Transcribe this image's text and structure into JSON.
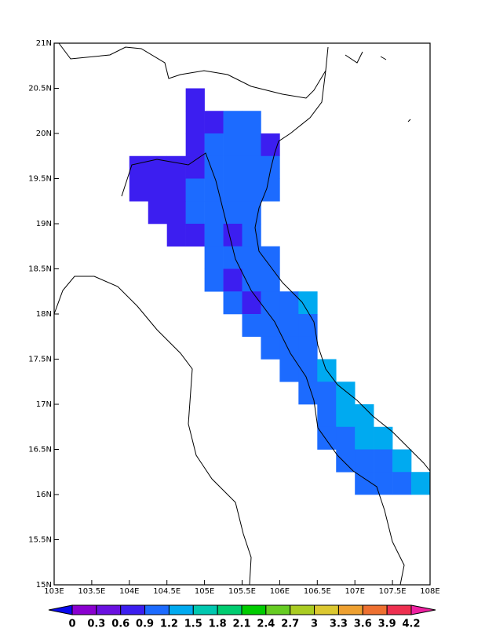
{
  "chart_data": {
    "type": "grid-map",
    "xlim": [
      103,
      108
    ],
    "ylim": [
      15,
      21
    ],
    "xticks": [
      {
        "value": 103,
        "label": "103E"
      },
      {
        "value": 103.5,
        "label": "103.5E"
      },
      {
        "value": 104,
        "label": "104E"
      },
      {
        "value": 104.5,
        "label": "104.5E"
      },
      {
        "value": 105,
        "label": "105E"
      },
      {
        "value": 105.5,
        "label": "105.5E"
      },
      {
        "value": 106,
        "label": "106E"
      },
      {
        "value": 106.5,
        "label": "106.5E"
      },
      {
        "value": 107,
        "label": "107E"
      },
      {
        "value": 107.5,
        "label": "107.5E"
      },
      {
        "value": 108,
        "label": "108E"
      }
    ],
    "yticks": [
      {
        "value": 15,
        "label": "15N"
      },
      {
        "value": 15.5,
        "label": "15.5N"
      },
      {
        "value": 16,
        "label": "16N"
      },
      {
        "value": 16.5,
        "label": "16.5N"
      },
      {
        "value": 17,
        "label": "17N"
      },
      {
        "value": 17.5,
        "label": "17.5N"
      },
      {
        "value": 18,
        "label": "18N"
      },
      {
        "value": 18.5,
        "label": "18.5N"
      },
      {
        "value": 19,
        "label": "19N"
      },
      {
        "value": 19.5,
        "label": "19.5N"
      },
      {
        "value": 20,
        "label": "20N"
      },
      {
        "value": 20.5,
        "label": "20.5N"
      },
      {
        "value": 21,
        "label": "21N"
      }
    ],
    "levels": [
      0,
      0.3,
      0.6,
      0.9,
      1.2,
      1.5,
      1.8,
      2.1,
      2.4,
      2.7,
      3,
      3.3,
      3.6,
      3.9,
      4.2
    ],
    "colors": [
      "#0a0aee",
      "#8a00d0",
      "#6a10e0",
      "#3c1ef0",
      "#1c6bff",
      "#00aaf0",
      "#00c8b0",
      "#00cc70",
      "#00cc00",
      "#66cc22",
      "#aacc22",
      "#dcc830",
      "#eea030",
      "#ee7030",
      "#ee3050",
      "#ee20a0"
    ],
    "cells": [
      {
        "lon": 104.75,
        "lat": 20.25,
        "value": 0.75
      },
      {
        "lon": 104.75,
        "lat": 20,
        "value": 0.75
      },
      {
        "lon": 105,
        "lat": 20,
        "value": 0.75
      },
      {
        "lon": 105.25,
        "lat": 20,
        "value": 1.05
      },
      {
        "lon": 105.5,
        "lat": 20,
        "value": 1.05
      },
      {
        "lon": 104.75,
        "lat": 19.75,
        "value": 0.75
      },
      {
        "lon": 105,
        "lat": 19.75,
        "value": 1.05
      },
      {
        "lon": 105.25,
        "lat": 19.75,
        "value": 1.05
      },
      {
        "lon": 105.5,
        "lat": 19.75,
        "value": 1.05
      },
      {
        "lon": 105.75,
        "lat": 19.75,
        "value": 0.75
      },
      {
        "lon": 104,
        "lat": 19.5,
        "value": 0.75
      },
      {
        "lon": 104.25,
        "lat": 19.5,
        "value": 0.75
      },
      {
        "lon": 104.5,
        "lat": 19.5,
        "value": 0.75
      },
      {
        "lon": 104.75,
        "lat": 19.5,
        "value": 0.75
      },
      {
        "lon": 105,
        "lat": 19.5,
        "value": 1.05
      },
      {
        "lon": 105.25,
        "lat": 19.5,
        "value": 1.05
      },
      {
        "lon": 105.5,
        "lat": 19.5,
        "value": 1.05
      },
      {
        "lon": 105.75,
        "lat": 19.5,
        "value": 1.05
      },
      {
        "lon": 104,
        "lat": 19.25,
        "value": 0.75
      },
      {
        "lon": 104.25,
        "lat": 19.25,
        "value": 0.75
      },
      {
        "lon": 104.5,
        "lat": 19.25,
        "value": 0.75
      },
      {
        "lon": 104.75,
        "lat": 19.25,
        "value": 1.05
      },
      {
        "lon": 105,
        "lat": 19.25,
        "value": 1.05
      },
      {
        "lon": 105.25,
        "lat": 19.25,
        "value": 1.05
      },
      {
        "lon": 105.5,
        "lat": 19.25,
        "value": 1.05
      },
      {
        "lon": 105.75,
        "lat": 19.25,
        "value": 1.05
      },
      {
        "lon": 104.25,
        "lat": 19,
        "value": 0.75
      },
      {
        "lon": 104.5,
        "lat": 19,
        "value": 0.75
      },
      {
        "lon": 104.75,
        "lat": 19,
        "value": 1.05
      },
      {
        "lon": 105,
        "lat": 19,
        "value": 1.05
      },
      {
        "lon": 105.25,
        "lat": 19,
        "value": 1.05
      },
      {
        "lon": 105.5,
        "lat": 19,
        "value": 1.05
      },
      {
        "lon": 104.5,
        "lat": 18.75,
        "value": 0.75
      },
      {
        "lon": 104.75,
        "lat": 18.75,
        "value": 0.75
      },
      {
        "lon": 105,
        "lat": 18.75,
        "value": 1.05
      },
      {
        "lon": 105.25,
        "lat": 18.75,
        "value": 0.75
      },
      {
        "lon": 105.5,
        "lat": 18.75,
        "value": 1.05
      },
      {
        "lon": 105,
        "lat": 18.5,
        "value": 1.05
      },
      {
        "lon": 105.25,
        "lat": 18.5,
        "value": 1.05
      },
      {
        "lon": 105.5,
        "lat": 18.5,
        "value": 1.05
      },
      {
        "lon": 105.75,
        "lat": 18.5,
        "value": 1.05
      },
      {
        "lon": 105,
        "lat": 18.25,
        "value": 1.05
      },
      {
        "lon": 105.25,
        "lat": 18.25,
        "value": 0.75
      },
      {
        "lon": 105.5,
        "lat": 18.25,
        "value": 1.05
      },
      {
        "lon": 105.75,
        "lat": 18.25,
        "value": 1.05
      },
      {
        "lon": 105.25,
        "lat": 18,
        "value": 1.05
      },
      {
        "lon": 105.5,
        "lat": 18,
        "value": 0.75
      },
      {
        "lon": 105.75,
        "lat": 18,
        "value": 1.05
      },
      {
        "lon": 106,
        "lat": 18,
        "value": 1.05
      },
      {
        "lon": 106.25,
        "lat": 18,
        "value": 1.35
      },
      {
        "lon": 105.5,
        "lat": 17.75,
        "value": 1.05
      },
      {
        "lon": 105.75,
        "lat": 17.75,
        "value": 1.05
      },
      {
        "lon": 106,
        "lat": 17.75,
        "value": 1.05
      },
      {
        "lon": 106.25,
        "lat": 17.75,
        "value": 1.05
      },
      {
        "lon": 105.75,
        "lat": 17.5,
        "value": 1.05
      },
      {
        "lon": 106,
        "lat": 17.5,
        "value": 1.05
      },
      {
        "lon": 106.25,
        "lat": 17.5,
        "value": 1.05
      },
      {
        "lon": 106,
        "lat": 17.25,
        "value": 1.05
      },
      {
        "lon": 106.25,
        "lat": 17.25,
        "value": 1.05
      },
      {
        "lon": 106.5,
        "lat": 17.25,
        "value": 1.35
      },
      {
        "lon": 106.25,
        "lat": 17,
        "value": 1.05
      },
      {
        "lon": 106.5,
        "lat": 17,
        "value": 1.05
      },
      {
        "lon": 106.75,
        "lat": 17,
        "value": 1.35
      },
      {
        "lon": 106.5,
        "lat": 16.75,
        "value": 1.05
      },
      {
        "lon": 106.75,
        "lat": 16.75,
        "value": 1.35
      },
      {
        "lon": 107,
        "lat": 16.75,
        "value": 1.35
      },
      {
        "lon": 106.5,
        "lat": 16.5,
        "value": 1.05
      },
      {
        "lon": 106.75,
        "lat": 16.5,
        "value": 1.05
      },
      {
        "lon": 107,
        "lat": 16.5,
        "value": 1.35
      },
      {
        "lon": 107.25,
        "lat": 16.5,
        "value": 1.35
      },
      {
        "lon": 106.75,
        "lat": 16.25,
        "value": 1.05
      },
      {
        "lon": 107,
        "lat": 16.25,
        "value": 1.05
      },
      {
        "lon": 107.25,
        "lat": 16.25,
        "value": 1.05
      },
      {
        "lon": 107.5,
        "lat": 16.25,
        "value": 1.35
      },
      {
        "lon": 107,
        "lat": 16,
        "value": 1.05
      },
      {
        "lon": 107.25,
        "lat": 16,
        "value": 1.05
      },
      {
        "lon": 107.5,
        "lat": 16,
        "value": 1.05
      },
      {
        "lon": 107.75,
        "lat": 16,
        "value": 1.35
      }
    ]
  }
}
